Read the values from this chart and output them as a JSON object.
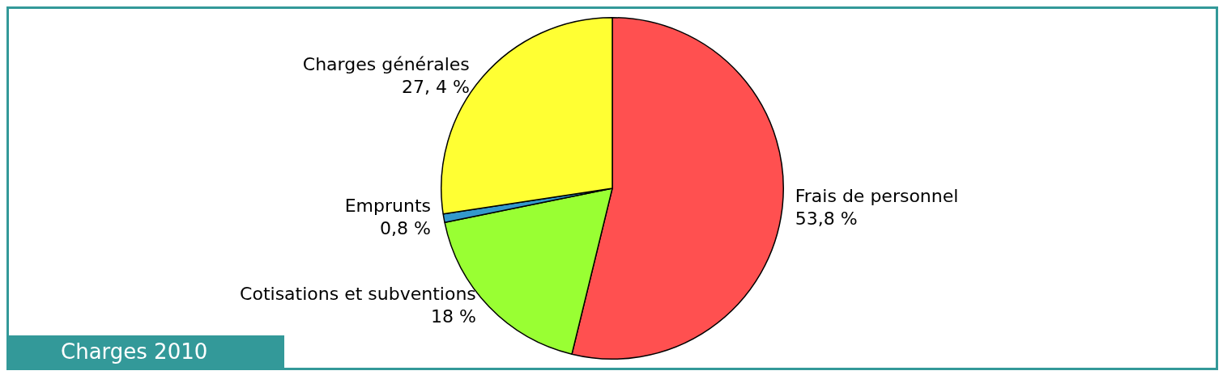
{
  "chart_data": {
    "type": "pie",
    "title": "Charges 2010",
    "categories": [
      "Frais de personnel",
      "Cotisations et subventions",
      "Emprunts",
      "Charges générales"
    ],
    "values": [
      53.8,
      18,
      0.8,
      27.4
    ],
    "value_labels": [
      "53,8 %",
      "18 %",
      "0,8 %",
      "27, 4 %"
    ],
    "colors": [
      "#ff5050",
      "#99ff33",
      "#3399cc",
      "#ffff33"
    ],
    "legend": false
  }
}
